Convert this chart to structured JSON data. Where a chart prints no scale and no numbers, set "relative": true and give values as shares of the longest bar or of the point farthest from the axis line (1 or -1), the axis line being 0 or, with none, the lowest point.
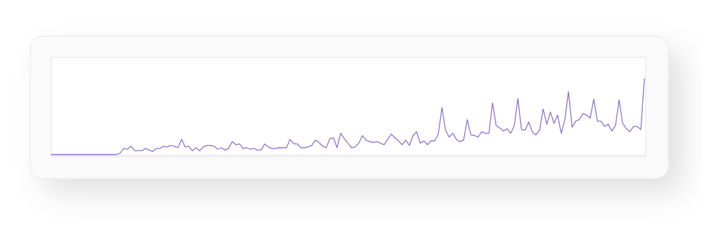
{
  "chart_data": {
    "type": "line",
    "relative": true,
    "marker": "none",
    "line_style": "solid",
    "categories": [
      null,
      null,
      null,
      null,
      null,
      null,
      null,
      null,
      null,
      null,
      null,
      null,
      null,
      null,
      null,
      null,
      null,
      null,
      null,
      null,
      null,
      null,
      null,
      null,
      null,
      null,
      null,
      null,
      null,
      null,
      null,
      null,
      null,
      null,
      null,
      null,
      null,
      null,
      null,
      null,
      null,
      null,
      null,
      null,
      null,
      null,
      null,
      null,
      null,
      null,
      null,
      null,
      null,
      null,
      null,
      null,
      null,
      null,
      null,
      null,
      null,
      null,
      null,
      null,
      null,
      null,
      null,
      null,
      null,
      null,
      null,
      null,
      null,
      null,
      null,
      null,
      null,
      null,
      null,
      null,
      null,
      null,
      null,
      null,
      null,
      null,
      null,
      null,
      null,
      null,
      null,
      null,
      null,
      null,
      null,
      null,
      null,
      null,
      null,
      null,
      null,
      null,
      null,
      null,
      null,
      null,
      null,
      null,
      null,
      null,
      null,
      null,
      null,
      null,
      null,
      null,
      null,
      null,
      null,
      null,
      null,
      null,
      null,
      null,
      null,
      null,
      null,
      null,
      null,
      null,
      null,
      null,
      null,
      null,
      null,
      null,
      null,
      null,
      null,
      null,
      null,
      null,
      null,
      null,
      null,
      null,
      null,
      null,
      null,
      null,
      null,
      null,
      null,
      null,
      null,
      null,
      null,
      null,
      null,
      null,
      null,
      null,
      null,
      null,
      null
    ],
    "series": [
      {
        "color": "#8a6fd6",
        "values": [
          0,
          0,
          0,
          0,
          0,
          0,
          0,
          0,
          0,
          0,
          0,
          0,
          0,
          0,
          0,
          0,
          0,
          0,
          0,
          0.02,
          0.08,
          0.07,
          0.11,
          0.05,
          0.05,
          0.05,
          0.08,
          0.06,
          0.04,
          0.08,
          0.08,
          0.11,
          0.1,
          0.12,
          0.11,
          0.09,
          0.2,
          0.1,
          0.11,
          0.05,
          0.09,
          0.05,
          0.1,
          0.12,
          0.12,
          0.11,
          0.07,
          0.09,
          0.06,
          0.08,
          0.17,
          0.13,
          0.14,
          0.08,
          0.09,
          0.07,
          0.08,
          0.06,
          0.06,
          0.14,
          0.1,
          0.08,
          0.08,
          0.09,
          0.09,
          0.09,
          0.2,
          0.14,
          0.14,
          0.09,
          0.09,
          0.1,
          0.12,
          0.19,
          0.16,
          0.11,
          0.09,
          0.21,
          0.22,
          0.09,
          0.28,
          0.21,
          0.15,
          0.09,
          0.1,
          0.15,
          0.25,
          0.19,
          0.17,
          0.16,
          0.17,
          0.15,
          0.13,
          0.2,
          0.27,
          0.22,
          0.18,
          0.13,
          0.19,
          0.12,
          0.25,
          0.3,
          0.15,
          0.18,
          0.13,
          0.18,
          0.18,
          0.27,
          0.62,
          0.32,
          0.23,
          0.28,
          0.2,
          0.17,
          0.19,
          0.46,
          0.26,
          0.25,
          0.23,
          0.3,
          0.28,
          0.28,
          0.68,
          0.38,
          0.35,
          0.31,
          0.34,
          0.28,
          0.38,
          0.74,
          0.33,
          0.32,
          0.43,
          0.3,
          0.26,
          0.32,
          0.6,
          0.4,
          0.56,
          0.41,
          0.52,
          0.28,
          0.46,
          0.83,
          0.36,
          0.44,
          0.46,
          0.54,
          0.52,
          0.48,
          0.73,
          0.44,
          0.44,
          0.37,
          0.4,
          0.31,
          0.38,
          0.72,
          0.41,
          0.34,
          0.3,
          0.37,
          0.37,
          0.33,
          1
        ]
      }
    ]
  }
}
